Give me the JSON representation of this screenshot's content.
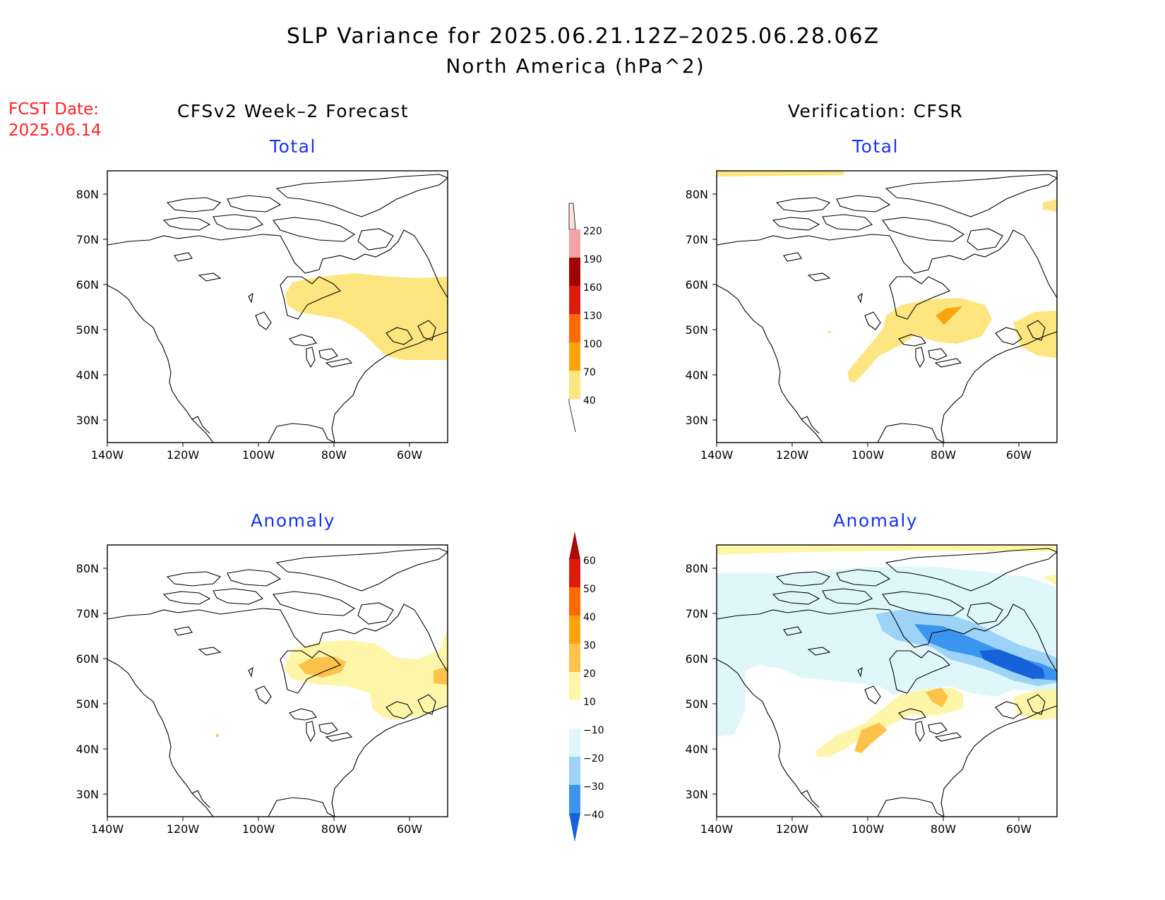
{
  "title_line1": "SLP Variance for 2025.06.21.12Z–2025.06.28.06Z",
  "title_line2": "North America (hPa^2)",
  "fcst_date": [
    "FCST Date:",
    "2025.06.14"
  ],
  "col_titles": [
    "CFSv2 Week–2 Forecast",
    "Verification: CFSR"
  ],
  "panel_titles": [
    "Total",
    "Total",
    "Anomaly",
    "Anomaly"
  ],
  "x_ticks": [
    "140W",
    "120W",
    "100W",
    "80W",
    "60W"
  ],
  "y_ticks": [
    "80N",
    "70N",
    "60N",
    "50N",
    "40N",
    "30N"
  ],
  "colorbar_total": {
    "labels": [
      "40",
      "70",
      "100",
      "130",
      "160",
      "190",
      "220"
    ],
    "colors": [
      "#fde57f",
      "#fba40b",
      "#fd6a03",
      "#dd1b0a",
      "#a10404",
      "#f2a2a2",
      "#fde0e0"
    ]
  },
  "colorbar_anomaly": {
    "labels": [
      "60",
      "50",
      "40",
      "30",
      "20",
      "10",
      "−10",
      "−20",
      "−30",
      "−40"
    ],
    "colors_top_down": [
      "#a80a0a",
      "#dd1b0a",
      "#fd6a03",
      "#fba40b",
      "#fdc24a",
      "#fdf6a8",
      "#ffffff",
      "#dff7fb",
      "#9cd3f7",
      "#3b94ee",
      "#1562d9"
    ]
  },
  "colors": {
    "light_yellow": "#fde57f",
    "pale_yellow": "#fdf6a8",
    "gold": "#fdc24a",
    "orange": "#fba40b",
    "pale_cyan": "#dff7fb",
    "light_blue": "#9cd3f7",
    "mid_blue": "#3b94ee",
    "deep_blue": "#1562d9",
    "fcst_red": "#ff2222",
    "panel_title_blue": "#1533f0"
  }
}
